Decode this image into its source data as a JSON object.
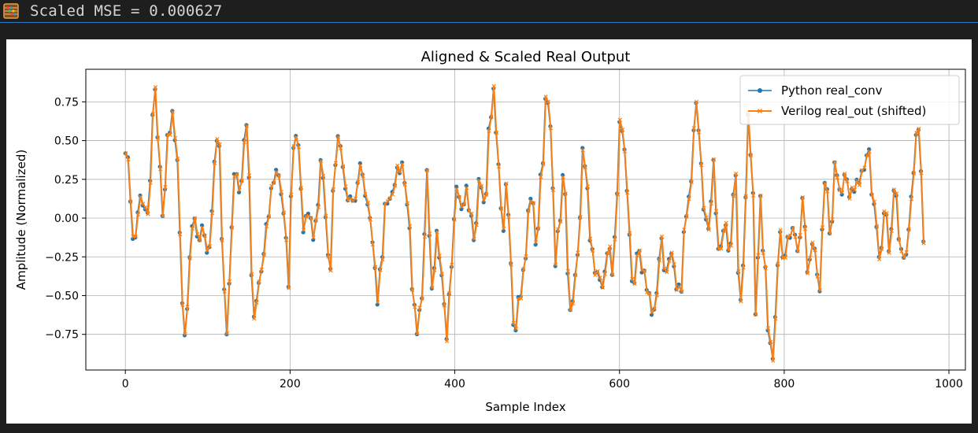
{
  "header": {
    "mse_text": "Scaled MSE = 0.000627",
    "icon": "abacus-icon"
  },
  "chart_data": {
    "type": "line",
    "title": "Aligned & Scaled Real Output",
    "xlabel": "Sample Index",
    "ylabel": "Amplitude (Normalized)",
    "xlim": [
      -48,
      1020
    ],
    "ylim": [
      -0.98,
      0.96
    ],
    "xticks": [
      0,
      200,
      400,
      600,
      800,
      1000
    ],
    "yticks": [
      -0.75,
      -0.5,
      -0.25,
      0.0,
      0.25,
      0.5,
      0.75
    ],
    "xtick_labels": [
      "0",
      "200",
      "400",
      "600",
      "800",
      "1000"
    ],
    "ytick_labels": [
      "−0.75",
      "−0.50",
      "−0.25",
      "0.00",
      "0.25",
      "0.50",
      "0.75"
    ],
    "grid": true,
    "legend_position": "top-right",
    "series": [
      {
        "name": "Python real_conv",
        "color": "#1f77b4",
        "marker": "dot",
        "line_width": 1.5
      },
      {
        "name": "Verilog real_out (shifted)",
        "color": "#ff7f0e",
        "marker": "x",
        "line_width": 2
      }
    ],
    "x_range": [
      0,
      970
    ],
    "step": 3,
    "anchors": [
      [
        0,
        0.4
      ],
      [
        2,
        0.43
      ],
      [
        5,
        0.15
      ],
      [
        10,
        -0.2
      ],
      [
        13,
        -0.05
      ],
      [
        18,
        0.18
      ],
      [
        23,
        0.05
      ],
      [
        28,
        0.05
      ],
      [
        35,
        0.82
      ],
      [
        40,
        0.5
      ],
      [
        45,
        0.02
      ],
      [
        52,
        0.55
      ],
      [
        57,
        0.66
      ],
      [
        63,
        0.35
      ],
      [
        67,
        -0.2
      ],
      [
        70,
        -0.65
      ],
      [
        72,
        -0.78
      ],
      [
        76,
        -0.5
      ],
      [
        80,
        -0.02
      ],
      [
        84,
        0.0
      ],
      [
        88,
        -0.15
      ],
      [
        95,
        -0.08
      ],
      [
        100,
        -0.28
      ],
      [
        105,
        0.05
      ],
      [
        110,
        0.55
      ],
      [
        114,
        0.45
      ],
      [
        118,
        -0.2
      ],
      [
        122,
        -0.8
      ],
      [
        126,
        -0.45
      ],
      [
        132,
        0.3
      ],
      [
        140,
        0.2
      ],
      [
        146,
        0.65
      ],
      [
        150,
        0.25
      ],
      [
        155,
        -0.7
      ],
      [
        160,
        -0.5
      ],
      [
        166,
        -0.3
      ],
      [
        172,
        0.0
      ],
      [
        180,
        0.25
      ],
      [
        186,
        0.28
      ],
      [
        190,
        0.1
      ],
      [
        194,
        -0.05
      ],
      [
        198,
        -0.45
      ],
      [
        202,
        0.3
      ],
      [
        206,
        0.58
      ],
      [
        210,
        0.45
      ],
      [
        216,
        -0.1
      ],
      [
        222,
        0.05
      ],
      [
        228,
        -0.1
      ],
      [
        232,
        0.0
      ],
      [
        238,
        0.42
      ],
      [
        242,
        0.05
      ],
      [
        248,
        -0.4
      ],
      [
        252,
        0.15
      ],
      [
        258,
        0.55
      ],
      [
        262,
        0.45
      ],
      [
        268,
        0.15
      ],
      [
        275,
        0.1
      ],
      [
        280,
        0.1
      ],
      [
        285,
        0.38
      ],
      [
        290,
        0.2
      ],
      [
        296,
        0.05
      ],
      [
        300,
        -0.15
      ],
      [
        306,
        -0.55
      ],
      [
        310,
        -0.35
      ],
      [
        316,
        0.1
      ],
      [
        322,
        0.15
      ],
      [
        330,
        0.3
      ],
      [
        336,
        0.32
      ],
      [
        340,
        0.2
      ],
      [
        344,
        -0.05
      ],
      [
        350,
        -0.55
      ],
      [
        354,
        -0.7
      ],
      [
        360,
        -0.5
      ],
      [
        366,
        0.28
      ],
      [
        372,
        -0.5
      ],
      [
        378,
        -0.1
      ],
      [
        384,
        -0.35
      ],
      [
        390,
        -0.75
      ],
      [
        396,
        -0.3
      ],
      [
        402,
        0.2
      ],
      [
        408,
        0.05
      ],
      [
        414,
        0.2
      ],
      [
        420,
        0.0
      ],
      [
        424,
        -0.15
      ],
      [
        430,
        0.25
      ],
      [
        436,
        0.05
      ],
      [
        442,
        0.6
      ],
      [
        447,
        0.85
      ],
      [
        452,
        0.4
      ],
      [
        458,
        -0.1
      ],
      [
        463,
        0.2
      ],
      [
        468,
        -0.3
      ],
      [
        472,
        -0.75
      ],
      [
        478,
        -0.5
      ],
      [
        484,
        -0.35
      ],
      [
        490,
        0.05
      ],
      [
        494,
        0.15
      ],
      [
        498,
        -0.2
      ],
      [
        506,
        0.35
      ],
      [
        511,
        0.82
      ],
      [
        516,
        0.6
      ],
      [
        522,
        -0.3
      ],
      [
        526,
        -0.1
      ],
      [
        532,
        0.3
      ],
      [
        540,
        -0.6
      ],
      [
        546,
        -0.4
      ],
      [
        550,
        -0.2
      ],
      [
        556,
        0.48
      ],
      [
        560,
        0.2
      ],
      [
        566,
        -0.2
      ],
      [
        572,
        -0.35
      ],
      [
        580,
        -0.45
      ],
      [
        586,
        -0.2
      ],
      [
        592,
        -0.35
      ],
      [
        596,
        0.1
      ],
      [
        600,
        0.65
      ],
      [
        605,
        0.5
      ],
      [
        612,
        -0.1
      ],
      [
        616,
        -0.5
      ],
      [
        622,
        -0.2
      ],
      [
        630,
        -0.35
      ],
      [
        636,
        -0.5
      ],
      [
        640,
        -0.65
      ],
      [
        644,
        -0.55
      ],
      [
        650,
        -0.15
      ],
      [
        656,
        -0.35
      ],
      [
        662,
        -0.2
      ],
      [
        670,
        -0.45
      ],
      [
        674,
        -0.5
      ],
      [
        680,
        0.0
      ],
      [
        686,
        0.2
      ],
      [
        692,
        0.75
      ],
      [
        696,
        0.6
      ],
      [
        702,
        0.05
      ],
      [
        708,
        -0.1
      ],
      [
        714,
        0.35
      ],
      [
        720,
        -0.2
      ],
      [
        728,
        -0.05
      ],
      [
        734,
        -0.25
      ],
      [
        740,
        0.3
      ],
      [
        746,
        -0.55
      ],
      [
        750,
        -0.3
      ],
      [
        756,
        0.65
      ],
      [
        760,
        0.4
      ],
      [
        766,
        -0.7
      ],
      [
        770,
        0.15
      ],
      [
        776,
        -0.3
      ],
      [
        782,
        -0.8
      ],
      [
        786,
        -0.88
      ],
      [
        790,
        -0.6
      ],
      [
        794,
        -0.05
      ],
      [
        798,
        -0.3
      ],
      [
        804,
        -0.15
      ],
      [
        810,
        -0.05
      ],
      [
        818,
        -0.2
      ],
      [
        822,
        0.15
      ],
      [
        828,
        -0.35
      ],
      [
        836,
        -0.15
      ],
      [
        842,
        -0.45
      ],
      [
        850,
        0.28
      ],
      [
        856,
        -0.15
      ],
      [
        862,
        0.35
      ],
      [
        868,
        0.15
      ],
      [
        874,
        0.3
      ],
      [
        880,
        0.15
      ],
      [
        888,
        0.2
      ],
      [
        896,
        0.3
      ],
      [
        902,
        0.48
      ],
      [
        906,
        0.2
      ],
      [
        910,
        0.05
      ],
      [
        916,
        -0.3
      ],
      [
        922,
        0.05
      ],
      [
        928,
        -0.2
      ],
      [
        934,
        0.25
      ],
      [
        940,
        -0.15
      ],
      [
        946,
        -0.3
      ],
      [
        950,
        -0.15
      ],
      [
        956,
        0.25
      ],
      [
        962,
        0.65
      ],
      [
        966,
        0.3
      ],
      [
        970,
        -0.18
      ]
    ],
    "verilog_x_offset": 0.5,
    "verilog_y_jitter": 0.015
  }
}
